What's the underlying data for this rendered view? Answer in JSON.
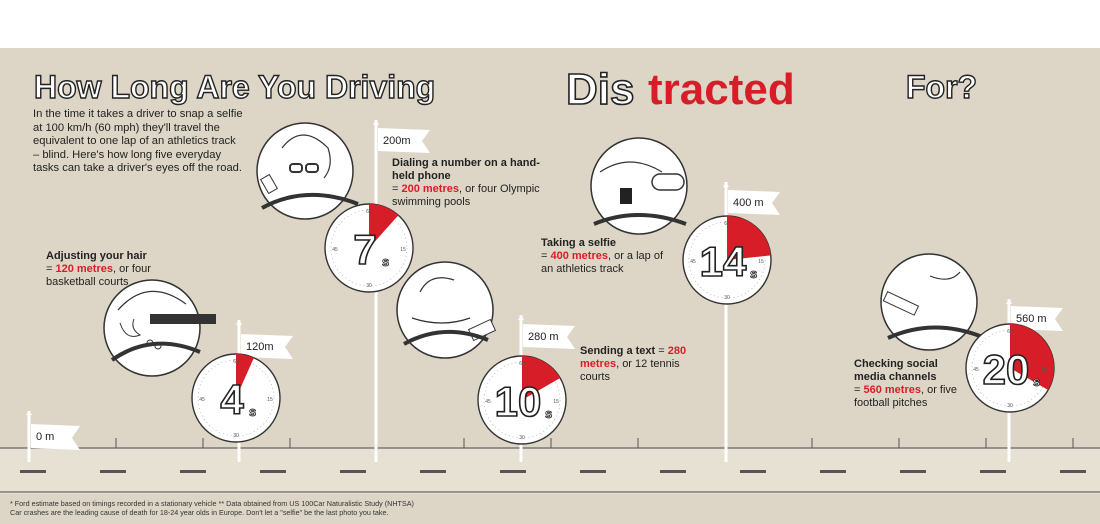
{
  "title": {
    "part1": "How Long Are You Driving",
    "dis": "Dis",
    "tracted": "tracted",
    "part2": "For?"
  },
  "intro": "In the time it takes a driver to snap a selfie at 100 km/h (60 mph) they'll travel the equivalent to one lap of an athletics track – blind. Here's how long five everyday tasks can take a driver's eyes off the road.",
  "start_flag": "0 m",
  "tasks": [
    {
      "title": "Adjusting your hair",
      "prefix": "= ",
      "distance": "120 metres",
      "suffix": ", or four basketball courts",
      "flag": "120m",
      "seconds": "4",
      "unit": "s",
      "fraction": 0.0667
    },
    {
      "title": "Dialing a number on a hand-held phone",
      "prefix": "= ",
      "distance": "200 metres",
      "suffix": ", or four Olympic swimming pools",
      "flag": "200m",
      "seconds": "7",
      "unit": "s",
      "fraction": 0.1167
    },
    {
      "title": "Sending a text",
      "prefix": " = ",
      "distance": "280 metres",
      "suffix": ", or 12 tennis courts",
      "flag": "280 m",
      "seconds": "10",
      "unit": "s",
      "fraction": 0.1667
    },
    {
      "title": "Taking a selfie",
      "prefix": "= ",
      "distance": "400 metres",
      "suffix": ", or a lap of an athletics track",
      "flag": "400 m",
      "seconds": "14",
      "unit": "s",
      "fraction": 0.2333
    },
    {
      "title": "Checking social media channels",
      "prefix": "= ",
      "distance": "560 metres",
      "suffix": ", or five football pitches",
      "flag": "560 m",
      "seconds": "20",
      "unit": "s",
      "fraction": 0.3333
    }
  ],
  "dial_labels": [
    "60",
    "15",
    "30",
    "45"
  ],
  "footnote": {
    "line1": "* Ford estimate based on timings recorded in a stationary vehicle ** Data obtained from US 100Car Naturalistic Study (NHTSA)",
    "line2": "Car crashes are the leading cause of death for 18-24 year olds in Europe. Don't let a \"selfie\" be the last photo you take."
  },
  "colors": {
    "background": "#ddd6c6",
    "accent": "#d71e28",
    "ink": "#222222"
  }
}
